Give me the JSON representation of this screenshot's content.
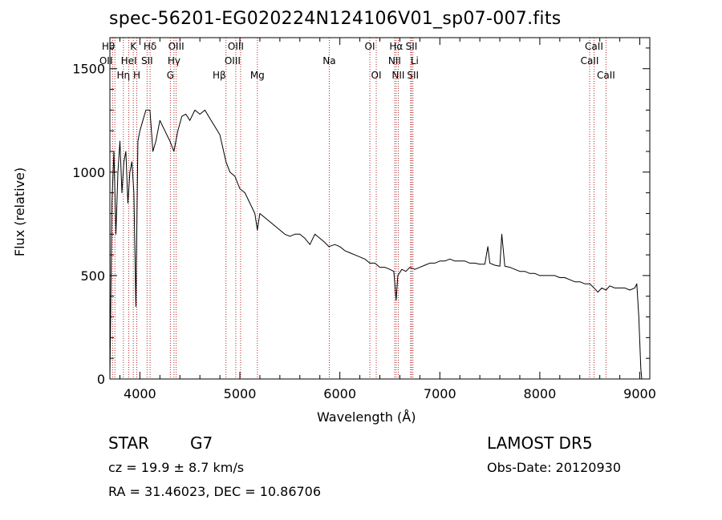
{
  "chart_data": {
    "type": "line",
    "title": "spec-56201-EG020224N124106V01_sp07-007.fits",
    "xlabel": "Wavelength (Å)",
    "ylabel": "Flux (relative)",
    "xlim": [
      3700,
      9100
    ],
    "ylim": [
      0,
      1650
    ],
    "x_ticks": [
      4000,
      5000,
      6000,
      7000,
      8000,
      9000
    ],
    "x_tick_labels": [
      "4000",
      "5000",
      "6000",
      "7000",
      "8000",
      "9000"
    ],
    "y_ticks": [
      0,
      500,
      1000,
      1500
    ],
    "y_tick_labels": [
      "0",
      "500",
      "1000",
      "1500"
    ],
    "line_color": "#000000",
    "marker_color": "#b22222",
    "series": [
      {
        "x": [
          3700,
          3720,
          3740,
          3760,
          3780,
          3800,
          3820,
          3840,
          3860,
          3880,
          3900,
          3920,
          3940,
          3960,
          3980,
          4000,
          4030,
          4060,
          4100,
          4130,
          4160,
          4200,
          4250,
          4300,
          4340,
          4380,
          4420,
          4460,
          4500,
          4550,
          4600,
          4650,
          4700,
          4750,
          4800,
          4861,
          4900,
          4950,
          5000,
          5050,
          5100,
          5150,
          5175,
          5200,
          5250,
          5300,
          5350,
          5400,
          5450,
          5500,
          5550,
          5600,
          5650,
          5700,
          5750,
          5800,
          5850,
          5890,
          5950,
          6000,
          6050,
          6100,
          6150,
          6200,
          6250,
          6300,
          6350,
          6400,
          6450,
          6500,
          6540,
          6563,
          6580,
          6620,
          6660,
          6700,
          6750,
          6800,
          6850,
          6900,
          6950,
          7000,
          7050,
          7100,
          7150,
          7200,
          7250,
          7300,
          7350,
          7400,
          7450,
          7480,
          7500,
          7550,
          7600,
          7620,
          7650,
          7700,
          7750,
          7800,
          7850,
          7900,
          7950,
          8000,
          8050,
          8100,
          8150,
          8200,
          8250,
          8300,
          8350,
          8400,
          8450,
          8500,
          8542,
          8580,
          8620,
          8662,
          8700,
          8750,
          8800,
          8850,
          8900,
          8950,
          8970,
          8990,
          9010,
          9020
        ],
        "y": [
          0,
          850,
          1100,
          700,
          1000,
          1150,
          900,
          1050,
          1100,
          850,
          1000,
          1050,
          900,
          350,
          1150,
          1200,
          1250,
          1300,
          1300,
          1100,
          1150,
          1250,
          1200,
          1150,
          1100,
          1200,
          1270,
          1280,
          1250,
          1300,
          1280,
          1300,
          1260,
          1220,
          1180,
          1050,
          1000,
          980,
          920,
          900,
          850,
          800,
          720,
          800,
          780,
          760,
          740,
          720,
          700,
          690,
          700,
          700,
          680,
          650,
          700,
          680,
          660,
          640,
          650,
          640,
          620,
          610,
          600,
          590,
          580,
          560,
          560,
          540,
          540,
          530,
          520,
          380,
          500,
          530,
          520,
          540,
          530,
          540,
          550,
          560,
          560,
          570,
          570,
          580,
          570,
          570,
          570,
          560,
          560,
          555,
          555,
          640,
          560,
          550,
          545,
          700,
          545,
          540,
          530,
          520,
          520,
          510,
          510,
          500,
          500,
          500,
          500,
          490,
          490,
          480,
          470,
          470,
          460,
          460,
          440,
          420,
          440,
          430,
          450,
          440,
          440,
          440,
          430,
          440,
          460,
          300,
          50,
          0
        ]
      }
    ],
    "line_markers": [
      {
        "label": "OII",
        "x": 3727,
        "row": 2,
        "side": "l"
      },
      {
        "label": "Hθ",
        "x": 3750,
        "row": 1,
        "side": "l"
      },
      {
        "label": "Hη",
        "x": 3835,
        "row": 3,
        "side": "c"
      },
      {
        "label": "HeI",
        "x": 3889,
        "row": 2,
        "side": "c"
      },
      {
        "label": "K",
        "x": 3934,
        "row": 1,
        "side": "c"
      },
      {
        "label": "H",
        "x": 3969,
        "row": 3,
        "side": "c"
      },
      {
        "label": "Hδ",
        "x": 4102,
        "row": 1,
        "side": "c"
      },
      {
        "label": "SII",
        "x": 4072,
        "row": 2,
        "side": "c"
      },
      {
        "label": "G",
        "x": 4305,
        "row": 3,
        "side": "c"
      },
      {
        "label": "OIII",
        "x": 4363,
        "row": 1,
        "side": "c"
      },
      {
        "label": "Hγ",
        "x": 4341,
        "row": 2,
        "side": "c"
      },
      {
        "label": "Hβ",
        "x": 4861,
        "row": 3,
        "side": "l"
      },
      {
        "label": "OIII",
        "x": 4959,
        "row": 1,
        "side": "c"
      },
      {
        "label": "OIII",
        "x": 5007,
        "row": 2,
        "side": "l"
      },
      {
        "label": "Mg",
        "x": 5175,
        "row": 3,
        "side": "c"
      },
      {
        "label": "Na",
        "x": 5894,
        "row": 2,
        "side": "c"
      },
      {
        "label": "OI",
        "x": 6300,
        "row": 1,
        "side": "c"
      },
      {
        "label": "OI",
        "x": 6364,
        "row": 3,
        "side": "c"
      },
      {
        "label": "Hα",
        "x": 6563,
        "row": 1,
        "side": "c"
      },
      {
        "label": "NII",
        "x": 6548,
        "row": 2,
        "side": "c"
      },
      {
        "label": "NII",
        "x": 6584,
        "row": 3,
        "side": "c"
      },
      {
        "label": "SII",
        "x": 6717,
        "row": 1,
        "side": "c"
      },
      {
        "label": "Li",
        "x": 6708,
        "row": 2,
        "side": "r"
      },
      {
        "label": "SII",
        "x": 6731,
        "row": 3,
        "side": "c"
      },
      {
        "label": "CaII",
        "x": 8542,
        "row": 1,
        "side": "c"
      },
      {
        "label": "CaII",
        "x": 8498,
        "row": 2,
        "side": "c"
      },
      {
        "label": "CaII",
        "x": 8662,
        "row": 3,
        "side": "c"
      }
    ]
  },
  "info": {
    "class_label": "STAR",
    "subclass": "G7",
    "cz_line": "cz = 19.9 ± 8.7 km/s",
    "coords_line": "RA =  31.46023, DEC =  10.86706",
    "survey": "LAMOST DR5",
    "obs_date": "Obs-Date: 20120930"
  }
}
